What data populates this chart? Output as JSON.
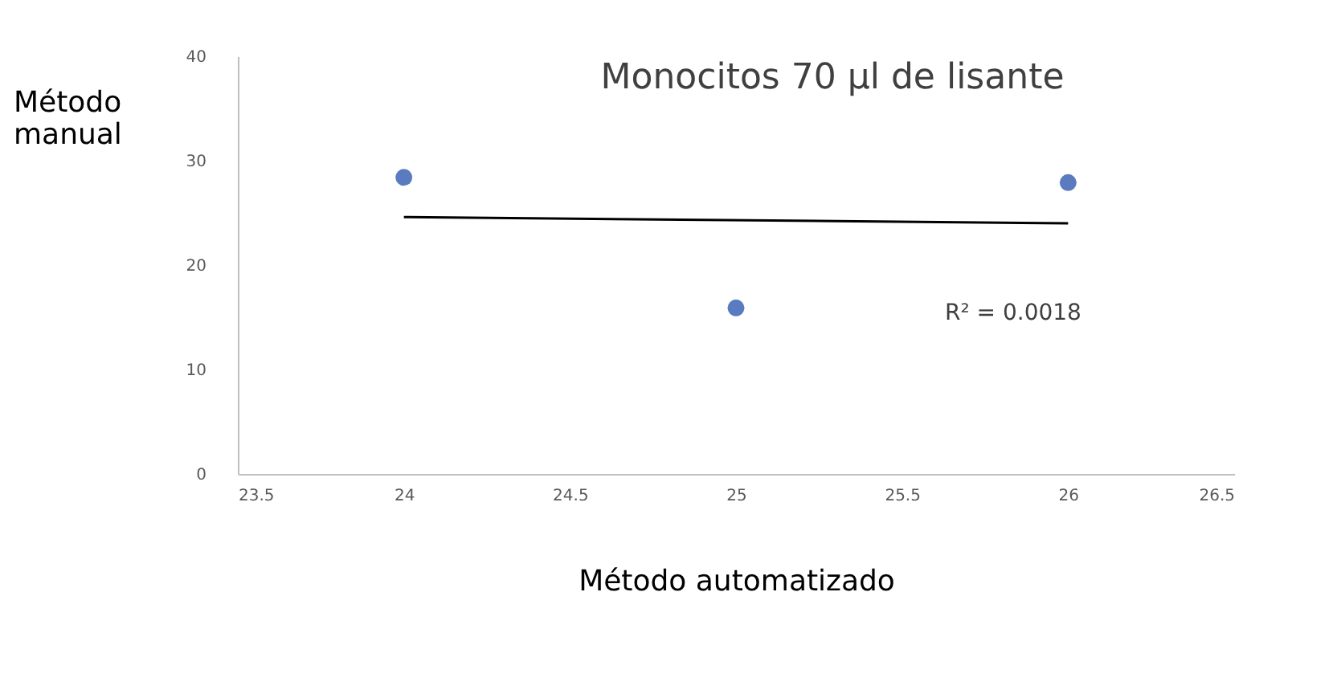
{
  "chart_data": {
    "type": "scatter",
    "title": "Monocitos 70 µl de lisante",
    "xlabel": "Método automatizado",
    "ylabel": "Método manual",
    "x": [
      24,
      25,
      26
    ],
    "series": [
      {
        "color": "#5b7bc0",
        "marker": "circle",
        "values": [
          28.4,
          15.9,
          27.9
        ]
      },
      {
        "type": "line",
        "color": "#000000",
        "x": [
          24,
          26
        ],
        "values": [
          24.6,
          24.0
        ]
      }
    ],
    "annotations": [
      "R² = 0.0018"
    ],
    "xlim": [
      23.5,
      26.5
    ],
    "xticks": [
      23.5,
      24,
      24.5,
      25,
      25.5,
      26,
      26.5
    ],
    "ylim": [
      0,
      40
    ],
    "yticks": [
      0,
      10,
      20,
      30,
      40
    ],
    "grid": false
  }
}
